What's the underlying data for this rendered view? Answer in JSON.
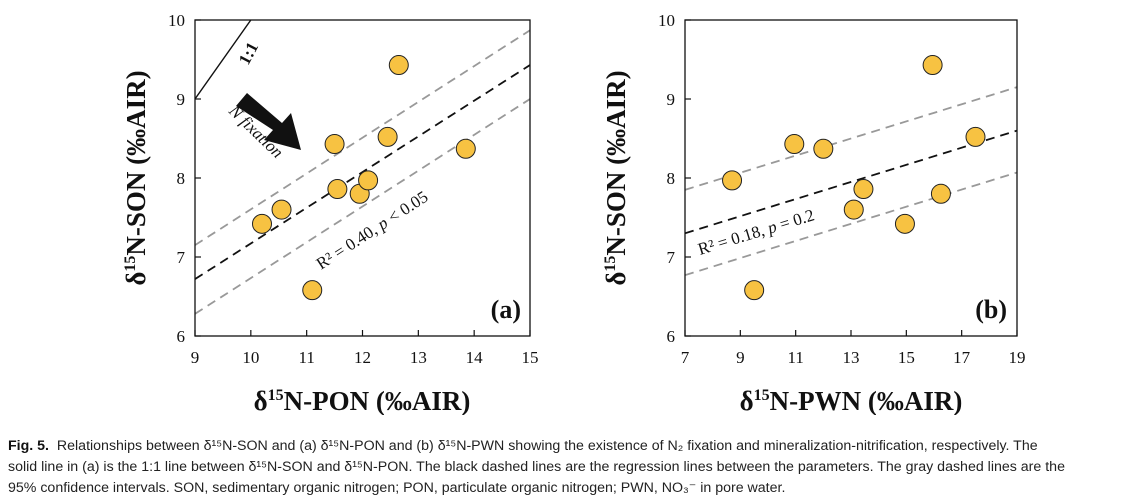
{
  "chart_data": [
    {
      "type": "scatter",
      "panel_label": "(a)",
      "xlabel": {
        "prefix": "δ",
        "sup": "15",
        "text": "N-PON (‰AIR)"
      },
      "ylabel": {
        "prefix": "δ",
        "sup": "15",
        "text": "N-SON (‰AIR)"
      },
      "xlim": [
        9,
        15
      ],
      "ylim": [
        6,
        10
      ],
      "xticks": [
        "9",
        "10",
        "11",
        "12",
        "13",
        "14",
        "15"
      ],
      "yticks": [
        "6",
        "7",
        "8",
        "9",
        "10"
      ],
      "points": [
        {
          "x": 10.2,
          "y": 7.42
        },
        {
          "x": 10.55,
          "y": 7.6
        },
        {
          "x": 11.1,
          "y": 6.58
        },
        {
          "x": 11.5,
          "y": 8.43
        },
        {
          "x": 11.55,
          "y": 7.86
        },
        {
          "x": 11.95,
          "y": 7.8
        },
        {
          "x": 12.1,
          "y": 7.97
        },
        {
          "x": 12.45,
          "y": 8.52
        },
        {
          "x": 12.65,
          "y": 9.43
        },
        {
          "x": 13.85,
          "y": 8.37
        }
      ],
      "regression": {
        "x": [
          9,
          15
        ],
        "y": [
          6.72,
          9.43
        ]
      },
      "ci_upper": {
        "x": [
          9,
          15
        ],
        "y": [
          7.15,
          9.87
        ]
      },
      "ci_lower": {
        "x": [
          9,
          15
        ],
        "y": [
          6.28,
          9.0
        ]
      },
      "one_to_one": {
        "x": [
          9,
          10
        ],
        "y": [
          9,
          10
        ]
      },
      "one_to_one_label": "1:1",
      "arrow_label": "N fixation",
      "stat_label": {
        "prefix": "R² = 0.40, ",
        "p": "p",
        "suffix": " < 0.05"
      },
      "point_color": "#f7c242",
      "regression_color": "#111111",
      "ci_color": "#999999"
    },
    {
      "type": "scatter",
      "panel_label": "(b)",
      "xlabel": {
        "prefix": "δ",
        "sup": "15",
        "text": "N-PWN (‰AIR)"
      },
      "ylabel": {
        "prefix": "δ",
        "sup": "15",
        "text": "N-SON (‰AIR)"
      },
      "xlim": [
        7,
        19
      ],
      "ylim": [
        6,
        10
      ],
      "xticks": [
        "7",
        "9",
        "11",
        "13",
        "15",
        "17",
        "19"
      ],
      "yticks": [
        "6",
        "7",
        "8",
        "9",
        "10"
      ],
      "points": [
        {
          "x": 8.7,
          "y": 7.97
        },
        {
          "x": 9.5,
          "y": 6.58
        },
        {
          "x": 10.95,
          "y": 8.43
        },
        {
          "x": 12.0,
          "y": 8.37
        },
        {
          "x": 13.1,
          "y": 7.6
        },
        {
          "x": 13.45,
          "y": 7.86
        },
        {
          "x": 14.95,
          "y": 7.42
        },
        {
          "x": 15.95,
          "y": 9.43
        },
        {
          "x": 16.25,
          "y": 7.8
        },
        {
          "x": 17.5,
          "y": 8.52
        }
      ],
      "regression": {
        "x": [
          7,
          19
        ],
        "y": [
          7.3,
          8.6
        ]
      },
      "ci_upper": {
        "x": [
          7,
          19
        ],
        "y": [
          7.85,
          9.15
        ]
      },
      "ci_lower": {
        "x": [
          7,
          19
        ],
        "y": [
          6.77,
          8.07
        ]
      },
      "stat_label": {
        "prefix": "R² = 0.18, ",
        "p": "p",
        "suffix": " = 0.2"
      },
      "point_color": "#f7c242",
      "regression_color": "#111111",
      "ci_color": "#999999"
    }
  ],
  "caption": {
    "label": "Fig. 5.",
    "lines": [
      "Relationships between δ¹⁵N-SON and (a) δ¹⁵N-PON and (b) δ¹⁵N-PWN showing the existence of N₂ fixation and mineralization-nitrification, respectively. The",
      "solid line in (a) is the 1:1 line between δ¹⁵N-SON and δ¹⁵N-PON. The black dashed lines are the regression lines between the parameters. The gray dashed lines are the",
      "95% confidence intervals. SON, sedimentary organic nitrogen; PON, particulate organic nitrogen; PWN, NO₃⁻ in pore water."
    ]
  }
}
